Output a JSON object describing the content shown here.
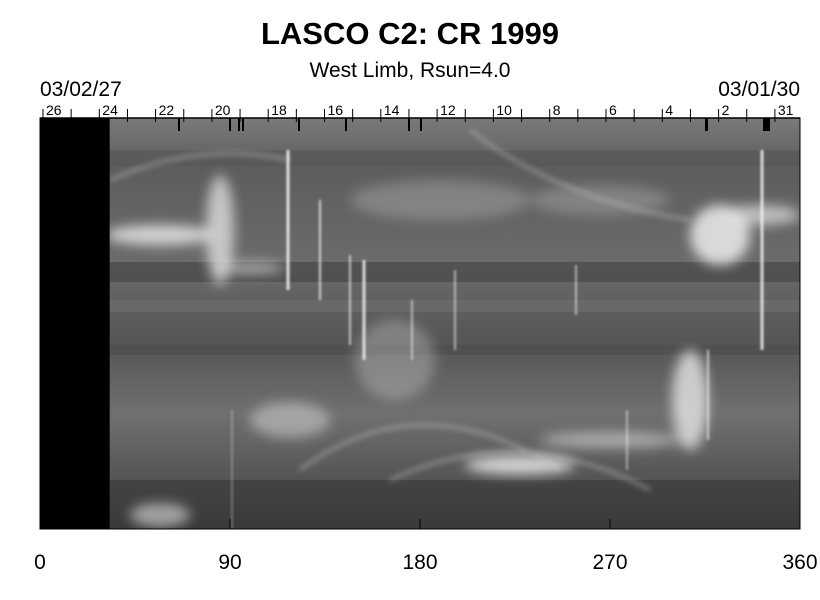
{
  "title": "LASCO C2: CR 1999",
  "subtitle": "West Limb, Rsun=4.0",
  "date_left": "03/02/27",
  "date_right": "03/01/30",
  "day_ticks": [
    "26",
    "24",
    "22",
    "20",
    "18",
    "16",
    "14",
    "12",
    "10",
    "8",
    "6",
    "4",
    "2",
    "31"
  ],
  "x_axis": {
    "range": [
      0,
      360
    ],
    "tick_labels": [
      "0",
      "90",
      "180",
      "270",
      "360"
    ]
  },
  "image": {
    "blank_band_end_deg": 33
  }
}
